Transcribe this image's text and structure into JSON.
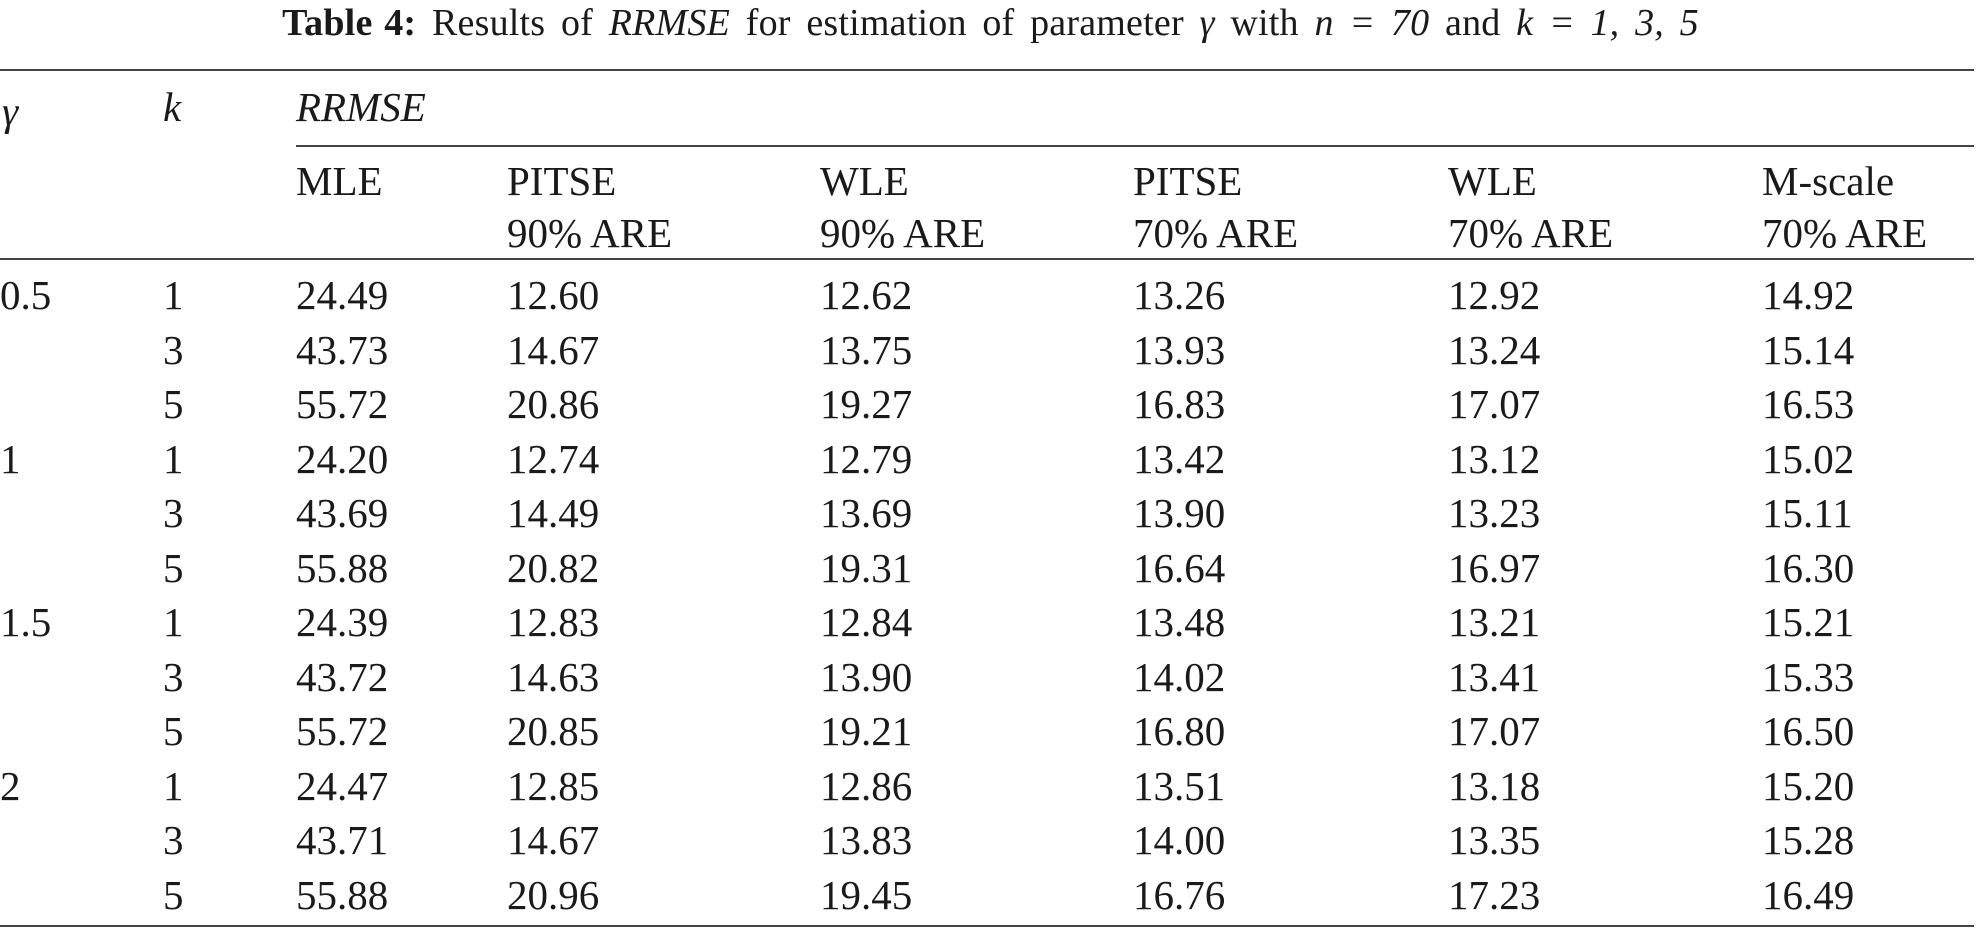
{
  "caption": {
    "label": "Table 4:",
    "text_before": "Results of",
    "metric": "RRMSE",
    "text_mid": "for estimation of parameter",
    "param_symbol": "γ",
    "text_with": "with",
    "n_expr": "n = 70",
    "text_and": "and",
    "k_expr": "k = 1, 3, 5"
  },
  "header": {
    "gamma_symbol": "γ",
    "k_symbol": "k",
    "group_label": "RRMSE",
    "columns": [
      {
        "line1": "MLE",
        "line2": ""
      },
      {
        "line1": "PITSE",
        "line2": "90% ARE"
      },
      {
        "line1": "WLE",
        "line2": "90% ARE"
      },
      {
        "line1": "PITSE",
        "line2": "70% ARE"
      },
      {
        "line1": "WLE",
        "line2": "70% ARE"
      },
      {
        "line1": "M-scale",
        "line2": "70% ARE"
      }
    ]
  },
  "rows": [
    {
      "gamma": "0.5",
      "k": "1",
      "values": [
        "24.49",
        "12.60",
        "12.62",
        "13.26",
        "12.92",
        "14.92"
      ]
    },
    {
      "gamma": "",
      "k": "3",
      "values": [
        "43.73",
        "14.67",
        "13.75",
        "13.93",
        "13.24",
        "15.14"
      ]
    },
    {
      "gamma": "",
      "k": "5",
      "values": [
        "55.72",
        "20.86",
        "19.27",
        "16.83",
        "17.07",
        "16.53"
      ]
    },
    {
      "gamma": "1",
      "k": "1",
      "values": [
        "24.20",
        "12.74",
        "12.79",
        "13.42",
        "13.12",
        "15.02"
      ]
    },
    {
      "gamma": "",
      "k": "3",
      "values": [
        "43.69",
        "14.49",
        "13.69",
        "13.90",
        "13.23",
        "15.11"
      ]
    },
    {
      "gamma": "",
      "k": "5",
      "values": [
        "55.88",
        "20.82",
        "19.31",
        "16.64",
        "16.97",
        "16.30"
      ]
    },
    {
      "gamma": "1.5",
      "k": "1",
      "values": [
        "24.39",
        "12.83",
        "12.84",
        "13.48",
        "13.21",
        "15.21"
      ]
    },
    {
      "gamma": "",
      "k": "3",
      "values": [
        "43.72",
        "14.63",
        "13.90",
        "14.02",
        "13.41",
        "15.33"
      ]
    },
    {
      "gamma": "",
      "k": "5",
      "values": [
        "55.72",
        "20.85",
        "19.21",
        "16.80",
        "17.07",
        "16.50"
      ]
    },
    {
      "gamma": "2",
      "k": "1",
      "values": [
        "24.47",
        "12.85",
        "12.86",
        "13.51",
        "13.18",
        "15.20"
      ]
    },
    {
      "gamma": "",
      "k": "3",
      "values": [
        "43.71",
        "14.67",
        "13.83",
        "14.00",
        "13.35",
        "15.28"
      ]
    },
    {
      "gamma": "",
      "k": "5",
      "values": [
        "55.88",
        "20.96",
        "19.45",
        "16.76",
        "17.23",
        "16.49"
      ]
    }
  ]
}
